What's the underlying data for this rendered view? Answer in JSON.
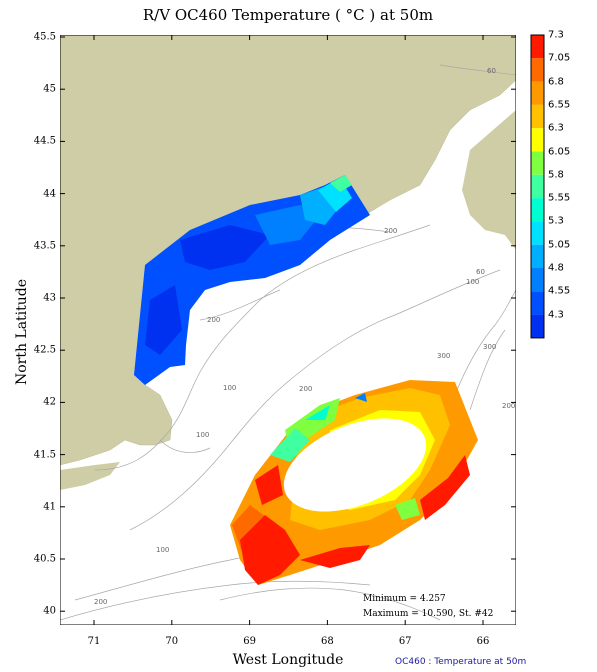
{
  "title": "R/V OC460 Temperature ( °C ) at 50m",
  "xlabel": "West Longitude",
  "ylabel": "North Latitude",
  "x_ticks": [
    "71",
    "70",
    "69",
    "68",
    "67",
    "66"
  ],
  "y_ticks": [
    "45.5",
    "45",
    "44.5",
    "44",
    "43.5",
    "43",
    "42.5",
    "42",
    "41.5",
    "41",
    "40.5",
    "40"
  ],
  "colorbar_ticks": [
    "7.3",
    "7.05",
    "6.8",
    "6.55",
    "6.3",
    "6.05",
    "5.8",
    "5.55",
    "5.3",
    "5.05",
    "4.8",
    "4.55",
    "4.3"
  ],
  "colorbar_colors": [
    "#ff1a00",
    "#ff6a00",
    "#ff9900",
    "#ffc000",
    "#ffff00",
    "#80ff40",
    "#40ffa0",
    "#00ffd0",
    "#00e0ff",
    "#00b0ff",
    "#0080ff",
    "#0050ff",
    "#0030f0"
  ],
  "stats": {
    "minimum": "Minimum = 4.257",
    "maximum": "Maximum = 10.590, St. #42"
  },
  "contour_labels": [
    "60",
    "100",
    "200",
    "200",
    "100",
    "200",
    "300",
    "100",
    "300",
    "60",
    "100",
    "200",
    "200"
  ],
  "footer": "OC460 : Temperature at 50m",
  "colors": {
    "land": "#cfcda6",
    "contour": "#a8a8a8"
  }
}
